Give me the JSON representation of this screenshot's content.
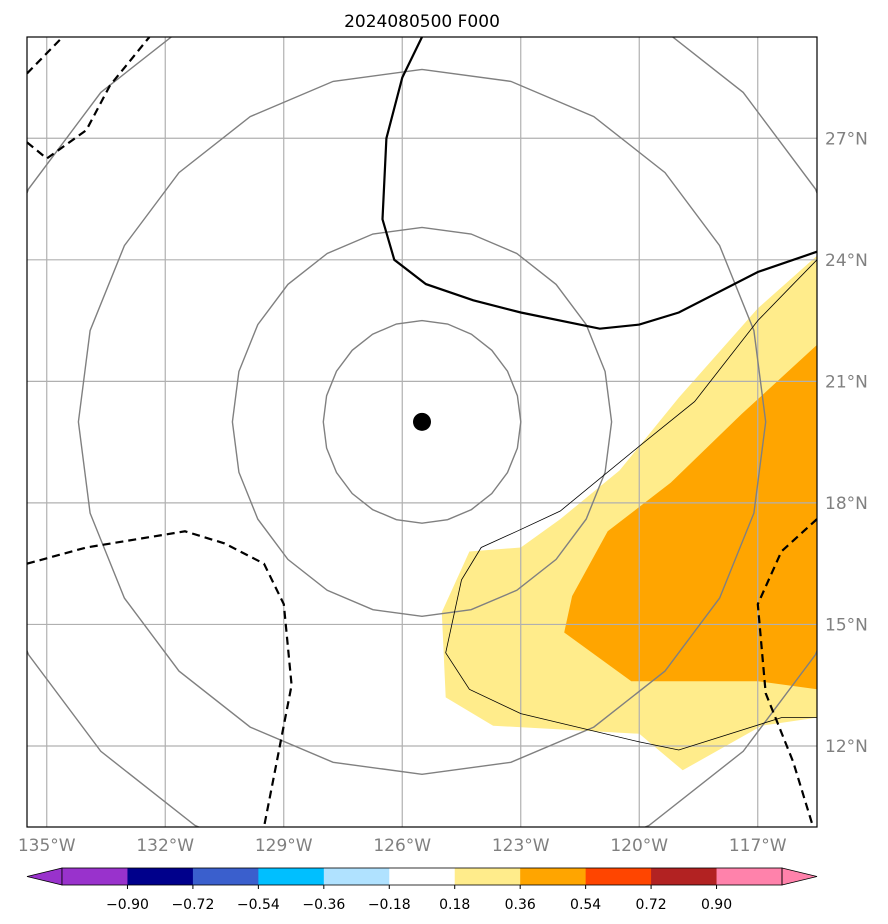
{
  "chart_data": {
    "type": "heatmap",
    "title": "2024080500 F000",
    "map": {
      "lon_range": [
        -135.5,
        -115.5
      ],
      "lat_range": [
        10,
        29.5
      ],
      "grid": true,
      "lon_ticks": [
        -135,
        -132,
        -129,
        -126,
        -123,
        -120,
        -117
      ],
      "lon_tick_labels": [
        "135°W",
        "132°W",
        "129°W",
        "126°W",
        "123°W",
        "120°W",
        "117°W"
      ],
      "lat_ticks": [
        12,
        15,
        18,
        21,
        24,
        27
      ],
      "lat_tick_labels": [
        "12°N",
        "15°N",
        "18°N",
        "21°N",
        "24°N",
        "27°N"
      ]
    },
    "storm_center": {
      "lon": -125.5,
      "lat": 20.0
    },
    "range_rings_radius_deg": [
      2.5,
      4.8,
      8.7,
      11.5
    ],
    "contours": {
      "solid": [
        [
          [
            -125.5,
            29.5
          ],
          [
            -126,
            28.5
          ],
          [
            -126.4,
            27.0
          ],
          [
            -126.5,
            25.0
          ],
          [
            -126.2,
            24.0
          ],
          [
            -125.4,
            23.4
          ],
          [
            -124.2,
            23.0
          ],
          [
            -123.0,
            22.7
          ],
          [
            -121.0,
            22.3
          ],
          [
            -120.0,
            22.4
          ],
          [
            -119.0,
            22.7
          ],
          [
            -117.0,
            23.7
          ],
          [
            -115.5,
            24.2
          ]
        ]
      ],
      "dashed": [
        [
          [
            -135.5,
            28.6
          ],
          [
            -134.6,
            29.5
          ]
        ],
        [
          [
            -135.5,
            26.9
          ],
          [
            -135.0,
            26.5
          ],
          [
            -134.0,
            27.2
          ],
          [
            -133.4,
            28.3
          ],
          [
            -132.4,
            29.5
          ]
        ],
        [
          [
            -135.5,
            16.5
          ],
          [
            -134.0,
            16.9
          ],
          [
            -131.5,
            17.3
          ],
          [
            -130.5,
            17.0
          ],
          [
            -129.5,
            16.5
          ],
          [
            -129.0,
            15.5
          ],
          [
            -128.8,
            13.5
          ],
          [
            -129.2,
            11.5
          ],
          [
            -129.5,
            10.0
          ]
        ],
        [
          [
            -115.5,
            17.6
          ],
          [
            -116.4,
            16.8
          ],
          [
            -117.0,
            15.5
          ],
          [
            -116.8,
            13.3
          ],
          [
            -116.1,
            11.6
          ],
          [
            -115.6,
            10.0
          ]
        ]
      ],
      "thin_outline": [
        [
          [
            -115.5,
            24.0
          ],
          [
            -116.2,
            23.3
          ],
          [
            -117.0,
            22.5
          ],
          [
            -118.6,
            20.5
          ],
          [
            -120.0,
            19.4
          ],
          [
            -122.0,
            17.8
          ],
          [
            -123.1,
            17.3
          ],
          [
            -124.0,
            16.9
          ],
          [
            -124.5,
            16.1
          ],
          [
            -124.9,
            14.3
          ],
          [
            -124.3,
            13.4
          ],
          [
            -123.0,
            12.8
          ],
          [
            -120.0,
            12.1
          ],
          [
            -119.0,
            11.9
          ],
          [
            -116.4,
            12.7
          ],
          [
            -115.5,
            12.7
          ]
        ]
      ]
    },
    "filled_regions": [
      {
        "level": "0.18–0.36",
        "color": "#FFEC8B",
        "polygon": [
          [
            -115.5,
            24.1
          ],
          [
            -117.0,
            22.8
          ],
          [
            -119.0,
            20.6
          ],
          [
            -120.5,
            18.8
          ],
          [
            -122.0,
            17.6
          ],
          [
            -123.0,
            16.9
          ],
          [
            -124.3,
            16.8
          ],
          [
            -125.0,
            15.3
          ],
          [
            -124.9,
            13.2
          ],
          [
            -123.7,
            12.5
          ],
          [
            -120.0,
            12.3
          ],
          [
            -118.9,
            11.4
          ],
          [
            -116.9,
            12.5
          ],
          [
            -115.5,
            12.7
          ]
        ]
      },
      {
        "level": "0.36–0.54",
        "color": "#FFA500",
        "polygon": [
          [
            -115.5,
            21.9
          ],
          [
            -117.4,
            20.2
          ],
          [
            -119.2,
            18.5
          ],
          [
            -120.8,
            17.3
          ],
          [
            -121.7,
            15.7
          ],
          [
            -121.9,
            14.8
          ],
          [
            -120.2,
            13.6
          ],
          [
            -117.0,
            13.6
          ],
          [
            -115.5,
            13.4
          ]
        ]
      }
    ],
    "colorbar": {
      "ticks": [
        "−0.90",
        "−0.72",
        "−0.54",
        "−0.36",
        "−0.18",
        "0.18",
        "0.36",
        "0.54",
        "0.72",
        "0.90"
      ],
      "colors": [
        "#9932CC",
        "#9932CC",
        "#00008B",
        "#3A5FCD",
        "#00BFFF",
        "#B0E2FF",
        "#FFFFFF",
        "#FFEC8B",
        "#FFA500",
        "#FF4500",
        "#B22222",
        "#FF82AB",
        "#FF82AB"
      ],
      "extend": "both"
    }
  }
}
